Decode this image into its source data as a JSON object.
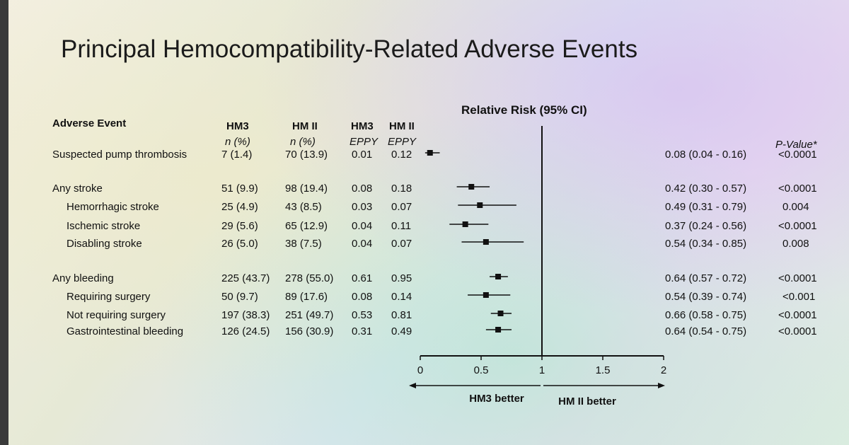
{
  "title": "Principal Hemocompatibility-Related Adverse Events",
  "columns": {
    "event": "Adverse Event",
    "hm3_n": "HM3",
    "hm3_n_sub": "n (%)",
    "hm2_n": "HM II",
    "hm2_n_sub": "n (%)",
    "hm3_eppy": "HM3",
    "hm3_eppy_sub": "EPPY",
    "hm2_eppy": "HM II",
    "hm2_eppy_sub": "EPPY",
    "pvalue": "P-Value*"
  },
  "rows": [
    {
      "event": "Suspected pump thrombosis",
      "indent": false,
      "hm3_n": "7 (1.4)",
      "hm2_n": "70 (13.9)",
      "hm3_eppy": "0.01",
      "hm2_eppy": "0.12",
      "rr_text": "0.08 (0.04 - 0.16)",
      "p": "<0.0001"
    },
    {
      "event": "Any stroke",
      "indent": false,
      "hm3_n": "51 (9.9)",
      "hm2_n": "98 (19.4)",
      "hm3_eppy": "0.08",
      "hm2_eppy": "0.18",
      "rr_text": "0.42 (0.30 - 0.57)",
      "p": "<0.0001"
    },
    {
      "event": "Hemorrhagic stroke",
      "indent": true,
      "hm3_n": "25 (4.9)",
      "hm2_n": "43 (8.5)",
      "hm3_eppy": "0.03",
      "hm2_eppy": "0.07",
      "rr_text": "0.49 (0.31 - 0.79)",
      "p": "0.004"
    },
    {
      "event": "Ischemic stroke",
      "indent": true,
      "hm3_n": "29 (5.6)",
      "hm2_n": "65 (12.9)",
      "hm3_eppy": "0.04",
      "hm2_eppy": "0.11",
      "rr_text": "0.37 (0.24 - 0.56)",
      "p": "<0.0001"
    },
    {
      "event": "Disabling stroke",
      "indent": true,
      "hm3_n": "26 (5.0)",
      "hm2_n": "38 (7.5)",
      "hm3_eppy": "0.04",
      "hm2_eppy": "0.07",
      "rr_text": "0.54 (0.34 - 0.85)",
      "p": "0.008"
    },
    {
      "event": "Any bleeding",
      "indent": false,
      "hm3_n": "225 (43.7)",
      "hm2_n": "278 (55.0)",
      "hm3_eppy": "0.61",
      "hm2_eppy": "0.95",
      "rr_text": "0.64 (0.57 - 0.72)",
      "p": "<0.0001"
    },
    {
      "event": "Requiring surgery",
      "indent": true,
      "hm3_n": "50 (9.7)",
      "hm2_n": "89 (17.6)",
      "hm3_eppy": "0.08",
      "hm2_eppy": "0.14",
      "rr_text": "0.54 (0.39 - 0.74)",
      "p": "<0.001"
    },
    {
      "event": "Not requiring surgery",
      "indent": true,
      "hm3_n": "197 (38.3)",
      "hm2_n": "251 (49.7)",
      "hm3_eppy": "0.53",
      "hm2_eppy": "0.81",
      "rr_text": "0.66 (0.58 - 0.75)",
      "p": "<0.0001"
    },
    {
      "event": "Gastrointestinal bleeding",
      "indent": true,
      "hm3_n": "126 (24.5)",
      "hm2_n": "156 (30.9)",
      "hm3_eppy": "0.31",
      "hm2_eppy": "0.49",
      "rr_text": "0.64 (0.54 - 0.75)",
      "p": "<0.0001"
    }
  ],
  "chart_data": {
    "type": "forest",
    "title": "Relative Risk (95% CI)",
    "xlim": [
      0,
      2
    ],
    "ticks": [
      0,
      0.5,
      1,
      1.5,
      2
    ],
    "tick_labels": [
      "0",
      "0.5",
      "1",
      "1.5",
      "2"
    ],
    "reference_line": 1,
    "categories": [
      "Suspected pump thrombosis",
      "Any stroke",
      "Hemorrhagic stroke",
      "Ischemic stroke",
      "Disabling stroke",
      "Any bleeding",
      "Requiring surgery",
      "Not requiring surgery",
      "Gastrointestinal bleeding"
    ],
    "estimate": [
      0.08,
      0.42,
      0.49,
      0.37,
      0.54,
      0.64,
      0.54,
      0.66,
      0.64
    ],
    "lower": [
      0.04,
      0.3,
      0.31,
      0.24,
      0.34,
      0.57,
      0.39,
      0.58,
      0.54
    ],
    "upper": [
      0.16,
      0.57,
      0.79,
      0.56,
      0.85,
      0.72,
      0.74,
      0.75,
      0.75
    ],
    "left_label": "HM3 better",
    "right_label": "HM II better",
    "marker_color": "#111111"
  }
}
